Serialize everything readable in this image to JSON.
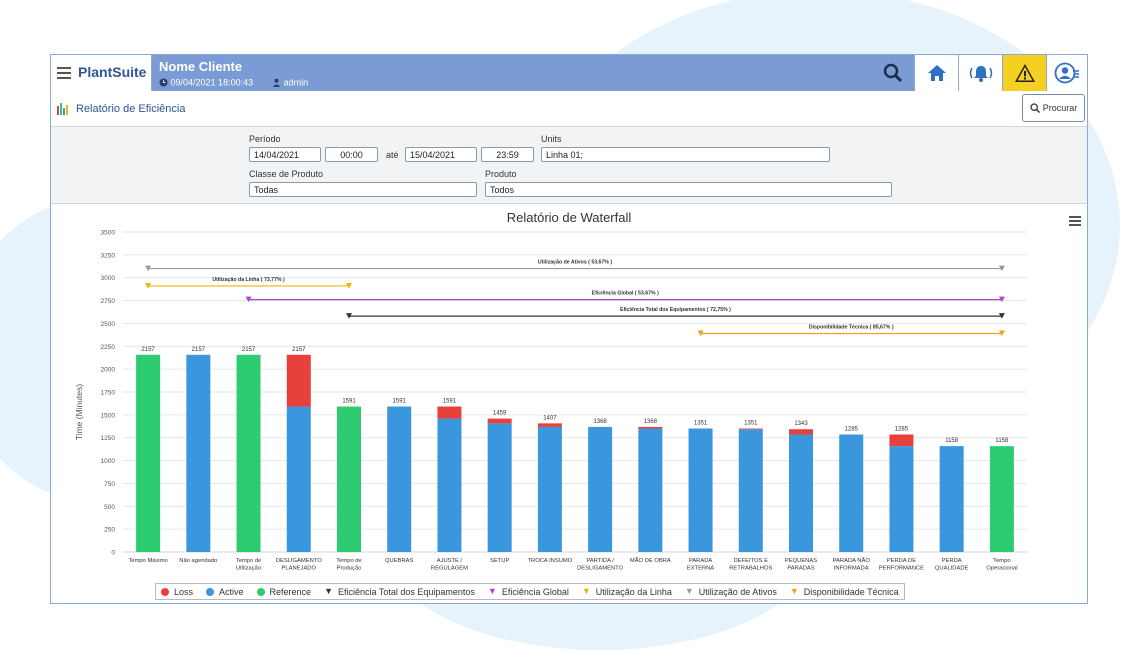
{
  "header": {
    "brand": "PlantSuite",
    "client_name": "Nome Cliente",
    "datetime": "09/04/2021 18:00:43",
    "user": "admin"
  },
  "icons": {
    "menu": "hamburger-icon",
    "search": "search-icon",
    "home": "home-icon",
    "alarm": "alarm-bell-icon",
    "warning": "warning-icon",
    "profile": "user-profile-icon",
    "clock": "clock-icon",
    "user": "user-icon",
    "report": "bar-chart-icon",
    "chart_menu": "chart-menu-icon"
  },
  "colors": {
    "header_bg": "#7a9bd4",
    "loss": "#e8413c",
    "active": "#3a96dd",
    "reference": "#2ecc71",
    "warning_bg": "#f5d020"
  },
  "subheader": {
    "title": "Relatório de Eficiência",
    "search_button": "Procurar"
  },
  "filters": {
    "periodo_label": "Período",
    "start_date": "14/04/2021",
    "start_time": "00:00",
    "ate": "até",
    "end_date": "15/04/2021",
    "end_time": "23:59",
    "units_label": "Units",
    "units_value": "Linha 01;",
    "classe_label": "Classe de Produto",
    "classe_value": "Todas",
    "produto_label": "Produto",
    "produto_value": "Todos"
  },
  "chart_data": {
    "type": "bar",
    "title": "Relatório de Waterfall",
    "ylabel": "Time (Minutes)",
    "xlabel": "",
    "ylim": [
      0,
      3500
    ],
    "yticks": [
      0,
      250,
      500,
      750,
      1000,
      1250,
      1500,
      1750,
      2000,
      2250,
      2500,
      2750,
      3000,
      3250,
      3500
    ],
    "categories": [
      [
        "Tempo Máximo"
      ],
      [
        "Não agendado"
      ],
      [
        "Tempo de",
        "Utilização"
      ],
      [
        "DESLIGAMENTO",
        "PLANEJADO"
      ],
      [
        "Tempo de",
        "Produção"
      ],
      [
        "QUEBRAS"
      ],
      [
        "AJUSTE /",
        "REGULAGEM"
      ],
      [
        "SETUP"
      ],
      [
        "TROCA INSUMO"
      ],
      [
        "PARTIDA /",
        "DESLIGAMENTO"
      ],
      [
        "MÃO DE OBRA"
      ],
      [
        "PARADA",
        "EXTERNA"
      ],
      [
        "DEFEITOS E",
        "RETRABALHOS"
      ],
      [
        "PEQUENAS",
        "PARADAS"
      ],
      [
        "PARADA NÃO",
        "INFORMADA"
      ],
      [
        "PERDA DE",
        "PERFORMANCE"
      ],
      [
        "PERDA",
        "QUALIDADE"
      ],
      [
        "Tempo",
        "Operacional"
      ]
    ],
    "series": [
      {
        "name": "Reference",
        "color": "#2ecc71",
        "values": [
          2157,
          0,
          2157,
          0,
          1591,
          0,
          0,
          0,
          0,
          0,
          0,
          0,
          0,
          0,
          0,
          0,
          0,
          1158
        ]
      },
      {
        "name": "Active",
        "color": "#3a96dd",
        "values": [
          0,
          2157,
          0,
          1591,
          0,
          1591,
          1459,
          1407,
          1368,
          1368,
          1351,
          1351,
          1343,
          1285,
          1285,
          1158,
          1158,
          0
        ]
      },
      {
        "name": "Loss",
        "color": "#e8413c",
        "values": [
          0,
          0,
          0,
          566,
          0,
          0,
          132,
          52,
          39,
          0,
          17,
          0,
          8,
          58,
          0,
          127,
          0,
          0
        ]
      }
    ],
    "bar_labels": [
      2157,
      2157,
      2157,
      2157,
      1591,
      1591,
      1591,
      1459,
      1407,
      1368,
      1368,
      1351,
      1351,
      1343,
      1285,
      1285,
      1158,
      1158
    ],
    "reference_lines": [
      {
        "name": "Utilização de Ativos",
        "label": "Utilização de Ativos ( 53,67% )",
        "value": 3100,
        "from": 0,
        "to": 17,
        "color": "#999999"
      },
      {
        "name": "Utilização da Linha",
        "label": "Utilização da Linha ( 73,77% )",
        "value": 2910,
        "from": 0,
        "to": 4,
        "color": "#f0b400"
      },
      {
        "name": "Eficiência Global",
        "label": "Eficiência Global ( 53,67% )",
        "value": 2760,
        "from": 2,
        "to": 17,
        "color": "#a64ac9"
      },
      {
        "name": "Eficiência Total dos Equipamentos",
        "label": "Eficiência Total dos Equipamentos ( 72,75% )",
        "value": 2580,
        "from": 4,
        "to": 17,
        "color": "#333333"
      },
      {
        "name": "Disponibilidade Técnica",
        "label": "Disponibilidade Técnica ( 85,67% )",
        "value": 2390,
        "from": 11,
        "to": 17,
        "color": "#f0a020"
      }
    ],
    "legend": [
      {
        "name": "Loss",
        "marker": "dot",
        "color": "#e8413c"
      },
      {
        "name": "Active",
        "marker": "dot",
        "color": "#3a96dd"
      },
      {
        "name": "Reference",
        "marker": "dot",
        "color": "#2ecc71"
      },
      {
        "name": "Eficiência Total dos Equipamentos",
        "marker": "triangle",
        "color": "#333333"
      },
      {
        "name": "Eficiência Global",
        "marker": "triangle",
        "color": "#a64ac9"
      },
      {
        "name": "Utilização da Linha",
        "marker": "triangle",
        "color": "#f0b400"
      },
      {
        "name": "Utilização de Ativos",
        "marker": "triangle",
        "color": "#999999"
      },
      {
        "name": "Disponibilidade Técnica",
        "marker": "triangle",
        "color": "#f0a020"
      }
    ],
    "legend_position": "bottom"
  }
}
